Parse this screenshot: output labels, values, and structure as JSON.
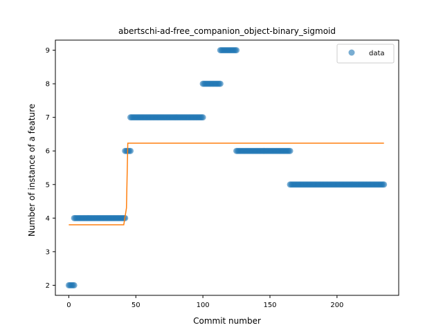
{
  "chart_data": {
    "type": "scatter",
    "title": "abertschi-ad-free_companion_object-binary_sigmoid",
    "xlabel": "Commit number",
    "ylabel": "Number of instance of a feature",
    "xlim": [
      -10,
      246
    ],
    "ylim": [
      1.7,
      9.3
    ],
    "xticks": [
      0,
      50,
      100,
      150,
      200
    ],
    "yticks": [
      2,
      3,
      4,
      5,
      6,
      7,
      8,
      9
    ],
    "legend": {
      "position": "top-right",
      "entries": [
        "data"
      ]
    },
    "colors": {
      "points": "#1f77b4",
      "fit": "#ff7f0e"
    },
    "series": [
      {
        "name": "data",
        "kind": "scatter",
        "segments": [
          {
            "x_start": 0,
            "x_end": 4,
            "y": 2
          },
          {
            "x_start": 4,
            "x_end": 42,
            "y": 4
          },
          {
            "x_start": 42,
            "x_end": 46,
            "y": 6
          },
          {
            "x_start": 46,
            "x_end": 100,
            "y": 7
          },
          {
            "x_start": 100,
            "x_end": 113,
            "y": 8
          },
          {
            "x_start": 113,
            "x_end": 125,
            "y": 9
          },
          {
            "x_start": 125,
            "x_end": 165,
            "y": 6
          },
          {
            "x_start": 165,
            "x_end": 235,
            "y": 5
          }
        ]
      },
      {
        "kind": "line",
        "points": [
          [
            0,
            3.8
          ],
          [
            41,
            3.8
          ],
          [
            43,
            4.3
          ],
          [
            44,
            6.23
          ],
          [
            235,
            6.23
          ]
        ]
      }
    ]
  }
}
